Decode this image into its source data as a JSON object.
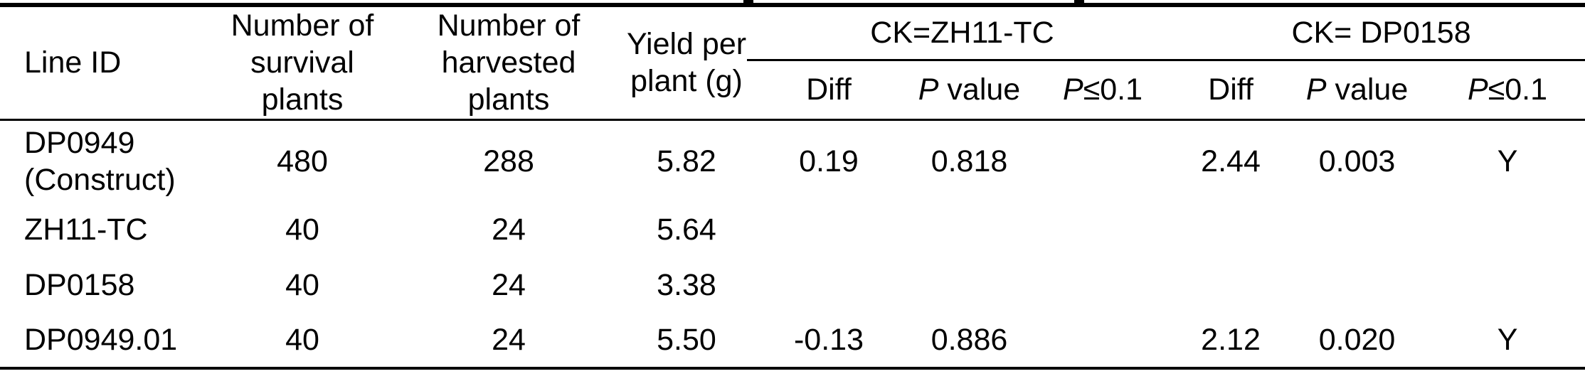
{
  "page": {
    "background": "#ffffff",
    "text_color": "#000000"
  },
  "table": {
    "headers": {
      "line_id": "Line ID",
      "survival_lines": [
        "Number of",
        "survival",
        "plants"
      ],
      "harvested_lines": [
        "Number of",
        "harvested",
        "plants"
      ],
      "yield_lines": [
        "Yield per",
        "plant (g)"
      ],
      "group_ck_zh11": "CK=ZH11-TC",
      "group_ck_dp0158": "CK= DP0158",
      "sub_diff": "Diff",
      "sub_p": "P",
      "sub_value_suffix": " value",
      "sub_le_suffix": "≤0.1"
    },
    "rows": [
      {
        "line_id_lines": [
          "DP0949",
          "(Construct)"
        ],
        "survival": "480",
        "harvested": "288",
        "yield": "5.82",
        "diff_zh11": "0.19",
        "p_zh11": "0.818",
        "sig_zh11": "",
        "diff_dp0158": "2.44",
        "p_dp0158": "0.003",
        "sig_dp0158": "Y"
      },
      {
        "line_id_lines": [
          "ZH11-TC"
        ],
        "survival": "40",
        "harvested": "24",
        "yield": "5.64",
        "diff_zh11": "",
        "p_zh11": "",
        "sig_zh11": "",
        "diff_dp0158": "",
        "p_dp0158": "",
        "sig_dp0158": ""
      },
      {
        "line_id_lines": [
          "DP0158"
        ],
        "survival": "40",
        "harvested": "24",
        "yield": "3.38",
        "diff_zh11": "",
        "p_zh11": "",
        "sig_zh11": "",
        "diff_dp0158": "",
        "p_dp0158": "",
        "sig_dp0158": ""
      },
      {
        "line_id_lines": [
          "DP0949.01"
        ],
        "survival": "40",
        "harvested": "24",
        "yield": "5.50",
        "diff_zh11": "-0.13",
        "p_zh11": "0.886",
        "sig_zh11": "",
        "diff_dp0158": "2.12",
        "p_dp0158": "0.020",
        "sig_dp0158": "Y"
      }
    ]
  }
}
